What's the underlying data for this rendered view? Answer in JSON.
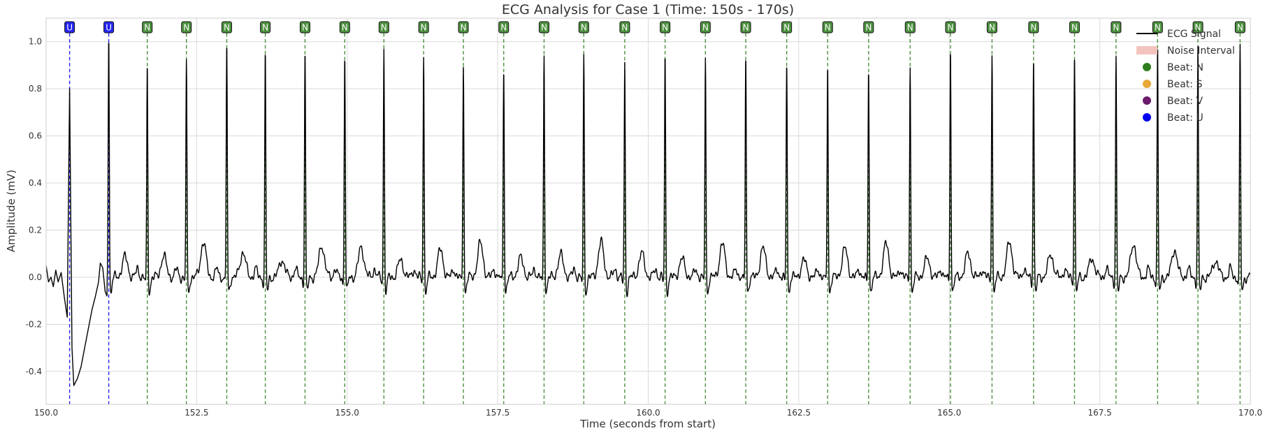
{
  "chart_data": {
    "type": "line",
    "title": "ECG Analysis for Case 1 (Time: 150s - 170s)",
    "xlabel": "Time (seconds from start)",
    "ylabel": "Amplitude (mV)",
    "xlim": [
      150,
      170
    ],
    "ylim": [
      -0.54,
      1.1
    ],
    "x_ticks": [
      150.0,
      152.5,
      155.0,
      157.5,
      160.0,
      162.5,
      165.0,
      167.5,
      170.0
    ],
    "x_tick_labels": [
      "150.0",
      "152.5",
      "155.0",
      "157.5",
      "160.0",
      "162.5",
      "165.0",
      "167.5",
      "170.0"
    ],
    "y_ticks": [
      -0.4,
      -0.2,
      0.0,
      0.2,
      0.4,
      0.6,
      0.8,
      1.0
    ],
    "y_tick_labels": [
      "-0.4",
      "-0.2",
      "0.0",
      "0.2",
      "0.4",
      "0.6",
      "0.8",
      "1.0"
    ],
    "grid": true,
    "legend_position": "top-right",
    "legend": [
      {
        "label": "ECG Signal",
        "kind": "line",
        "color": "#000000"
      },
      {
        "label": "Noise Interval",
        "kind": "patch",
        "color": "#f2c4bd"
      },
      {
        "label": "Beat: N",
        "kind": "dot",
        "color": "#2e7d1e"
      },
      {
        "label": "Beat: S",
        "kind": "dot",
        "color": "#e8a838"
      },
      {
        "label": "Beat: V",
        "kind": "dot",
        "color": "#6a1b6a"
      },
      {
        "label": "Beat: U",
        "kind": "dot",
        "color": "#0000ee"
      }
    ],
    "beat_colors": {
      "N": "#2e7d1e",
      "S": "#e8a838",
      "V": "#6a1b6a",
      "U": "#0000ee"
    },
    "signal_color": "#000000",
    "beats": [
      {
        "t": 150.39,
        "label": "U",
        "peak": 0.8
      },
      {
        "t": 151.04,
        "label": "U",
        "peak": 1.07
      },
      {
        "t": 151.68,
        "label": "N",
        "peak": 0.92
      },
      {
        "t": 152.33,
        "label": "N",
        "peak": 0.95
      },
      {
        "t": 153.0,
        "label": "N",
        "peak": 1.02
      },
      {
        "t": 153.64,
        "label": "N",
        "peak": 0.98
      },
      {
        "t": 154.3,
        "label": "N",
        "peak": 0.99
      },
      {
        "t": 154.96,
        "label": "N",
        "peak": 0.98
      },
      {
        "t": 155.61,
        "label": "N",
        "peak": 1.0
      },
      {
        "t": 156.27,
        "label": "N",
        "peak": 0.97
      },
      {
        "t": 156.93,
        "label": "N",
        "peak": 0.94
      },
      {
        "t": 157.6,
        "label": "N",
        "peak": 0.92
      },
      {
        "t": 158.27,
        "label": "N",
        "peak": 0.97
      },
      {
        "t": 158.93,
        "label": "N",
        "peak": 0.96
      },
      {
        "t": 159.61,
        "label": "N",
        "peak": 0.94
      },
      {
        "t": 160.28,
        "label": "N",
        "peak": 0.98
      },
      {
        "t": 160.95,
        "label": "N",
        "peak": 0.96
      },
      {
        "t": 161.62,
        "label": "N",
        "peak": 0.97
      },
      {
        "t": 162.3,
        "label": "N",
        "peak": 0.95
      },
      {
        "t": 162.98,
        "label": "N",
        "peak": 0.94
      },
      {
        "t": 163.66,
        "label": "N",
        "peak": 0.92
      },
      {
        "t": 164.35,
        "label": "N",
        "peak": 0.93
      },
      {
        "t": 165.02,
        "label": "N",
        "peak": 1.01
      },
      {
        "t": 165.71,
        "label": "N",
        "peak": 0.99
      },
      {
        "t": 166.4,
        "label": "N",
        "peak": 0.97
      },
      {
        "t": 167.08,
        "label": "N",
        "peak": 0.98
      },
      {
        "t": 167.77,
        "label": "N",
        "peak": 0.97
      },
      {
        "t": 168.46,
        "label": "N",
        "peak": 1.0
      },
      {
        "t": 169.13,
        "label": "N",
        "peak": 1.0
      },
      {
        "t": 169.83,
        "label": "N",
        "peak": 1.0
      }
    ],
    "waveform": {
      "baseline": 0.0,
      "t_wave_amplitude": 0.13,
      "s_wave_depth": -0.06,
      "artifact": [
        {
          "t": 150.0,
          "v": 0.05
        },
        {
          "t": 150.04,
          "v": -0.02
        },
        {
          "t": 150.08,
          "v": 0.0
        },
        {
          "t": 150.12,
          "v": -0.04
        },
        {
          "t": 150.16,
          "v": 0.03
        },
        {
          "t": 150.2,
          "v": -0.02
        },
        {
          "t": 150.25,
          "v": 0.02
        },
        {
          "t": 150.3,
          "v": -0.08
        },
        {
          "t": 150.35,
          "v": -0.17
        },
        {
          "t": 150.39,
          "v": 0.8
        },
        {
          "t": 150.43,
          "v": -0.3
        },
        {
          "t": 150.46,
          "v": -0.46
        },
        {
          "t": 150.52,
          "v": -0.43
        },
        {
          "t": 150.58,
          "v": -0.38
        },
        {
          "t": 150.64,
          "v": -0.3
        },
        {
          "t": 150.7,
          "v": -0.22
        },
        {
          "t": 150.76,
          "v": -0.14
        },
        {
          "t": 150.82,
          "v": -0.08
        },
        {
          "t": 150.87,
          "v": -0.02
        },
        {
          "t": 150.9,
          "v": 0.06
        },
        {
          "t": 150.94,
          "v": 0.04
        },
        {
          "t": 150.98,
          "v": -0.06
        },
        {
          "t": 151.01,
          "v": -0.08
        }
      ]
    }
  }
}
